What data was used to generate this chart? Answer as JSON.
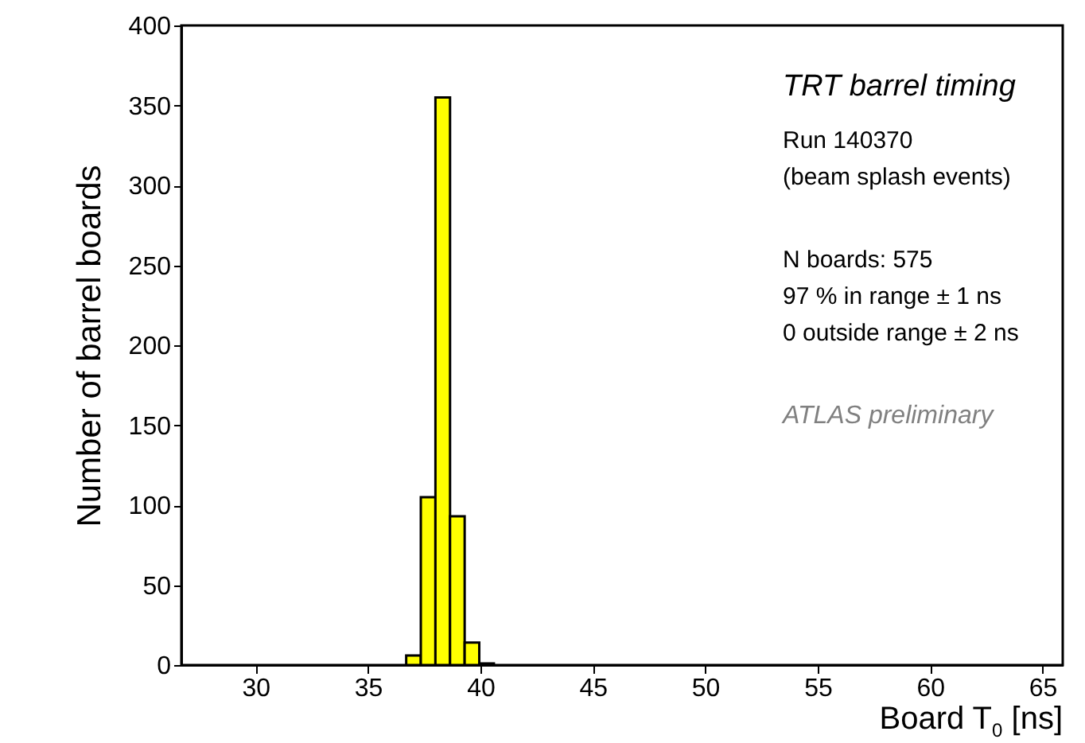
{
  "chart_data": {
    "type": "histogram",
    "xlabel": "Board T$_{0}$ [ns]",
    "ylabel": "Number of barrel boards",
    "bins": [
      36.7,
      37.35,
      38.0,
      38.65,
      39.3,
      39.95,
      40.6
    ],
    "values": [
      6,
      105,
      355,
      93,
      14,
      1
    ],
    "color": "#ffff00",
    "xlim": [
      26.7,
      65.9
    ],
    "xticks": [
      30,
      35,
      40,
      45,
      50,
      55,
      60,
      65
    ],
    "ylim": [
      0,
      400
    ],
    "yticks": [
      0,
      50,
      100,
      150,
      200,
      250,
      300,
      350,
      400
    ],
    "grid": false,
    "annotations": [
      "TRT barrel timing",
      "Run 140370",
      "(beam splash events)",
      "N boards: 575",
      "97 % in range ± 1 ns",
      "0 outside range ± 2 ns",
      "ATLAS preliminary"
    ]
  }
}
